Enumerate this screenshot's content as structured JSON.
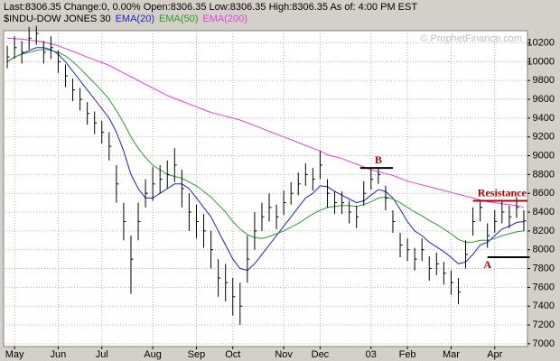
{
  "chart_data": {
    "type": "ohlc",
    "header": "Last:8306.35 Change:0, 0.00% Open:8306.35 Low:8306.35 High:8306.35 As of: 4:00 PM EST",
    "watermark": "© ProphetFinance.com",
    "categories": [
      null,
      "May",
      null,
      null,
      null,
      null,
      null,
      "Jun",
      null,
      null,
      null,
      null,
      null,
      "Jul",
      null,
      null,
      null,
      null,
      null,
      null,
      "Aug",
      null,
      null,
      null,
      null,
      null,
      "Sep",
      null,
      null,
      null,
      null,
      "Oct",
      null,
      null,
      null,
      null,
      null,
      null,
      "Nov",
      null,
      null,
      null,
      null,
      "Dec",
      null,
      null,
      null,
      null,
      null,
      null,
      "03",
      null,
      null,
      null,
      null,
      "Feb",
      null,
      null,
      null,
      null,
      null,
      "Mar",
      null,
      null,
      null,
      null,
      null,
      "Apr",
      null,
      null,
      null,
      null
    ],
    "price": {
      "name": "$INDU-DOW JONES 30",
      "color": "#000000",
      "high": [
        10170,
        10270,
        10220,
        10370,
        10380,
        10220,
        10270,
        10120,
        9970,
        9820,
        9720,
        9570,
        9470,
        9370,
        9250,
        8900,
        8500,
        8150,
        8500,
        8750,
        8880,
        8900,
        8950,
        9080,
        8850,
        8600,
        8480,
        8380,
        8200,
        7900,
        7850,
        7700,
        7650,
        8150,
        8400,
        8500,
        8600,
        8480,
        8630,
        8720,
        8820,
        8920,
        8870,
        9050,
        8750,
        8620,
        8620,
        8520,
        8470,
        8730,
        8860,
        8880,
        8680,
        8420,
        8180,
        8120,
        8020,
        8120,
        7930,
        7970,
        7870,
        7780,
        7700,
        8100,
        8450,
        8530,
        8280,
        8420,
        8520,
        8470,
        8560,
        8420
      ],
      "low": [
        9930,
        10030,
        9980,
        10130,
        10180,
        9980,
        10030,
        9880,
        9730,
        9580,
        9480,
        9330,
        9230,
        9130,
        8950,
        8500,
        8100,
        7530,
        8100,
        8450,
        8520,
        8600,
        8650,
        8720,
        8450,
        8200,
        8120,
        8020,
        7800,
        7500,
        7450,
        7300,
        7200,
        7650,
        8000,
        8200,
        8300,
        8220,
        8370,
        8480,
        8580,
        8680,
        8630,
        8750,
        8450,
        8380,
        8380,
        8280,
        8230,
        8470,
        8640,
        8700,
        8420,
        8180,
        7920,
        7880,
        7780,
        7880,
        7670,
        7730,
        7630,
        7520,
        7420,
        7800,
        8150,
        8300,
        8020,
        8180,
        8280,
        8230,
        8340,
        8200
      ],
      "close": [
        10050,
        10150,
        10100,
        10250,
        10300,
        10100,
        10150,
        10000,
        9850,
        9700,
        9600,
        9450,
        9350,
        9250,
        9100,
        8700,
        8300,
        7900,
        8300,
        8600,
        8700,
        8750,
        8800,
        8900,
        8650,
        8400,
        8300,
        8200,
        8000,
        7700,
        7650,
        7500,
        7400,
        7900,
        8200,
        8350,
        8450,
        8350,
        8500,
        8600,
        8700,
        8800,
        8750,
        8900,
        8600,
        8500,
        8500,
        8400,
        8350,
        8600,
        8750,
        8800,
        8550,
        8300,
        8050,
        8000,
        7900,
        8000,
        7800,
        7850,
        7750,
        7650,
        7550,
        7950,
        8300,
        8450,
        8150,
        8300,
        8400,
        8350,
        8450,
        8306.35
      ]
    },
    "series": [
      {
        "name": "EMA(20)",
        "color": "#2020c0",
        "values": [
          10000,
          10050,
          10080,
          10120,
          10150,
          10150,
          10130,
          10080,
          10000,
          9900,
          9800,
          9700,
          9600,
          9500,
          9400,
          9250,
          9050,
          8800,
          8650,
          8550,
          8550,
          8600,
          8650,
          8700,
          8700,
          8650,
          8550,
          8450,
          8350,
          8200,
          8050,
          7900,
          7800,
          7780,
          7850,
          7950,
          8050,
          8150,
          8250,
          8350,
          8450,
          8550,
          8600,
          8680,
          8670,
          8620,
          8580,
          8540,
          8500,
          8520,
          8580,
          8640,
          8620,
          8550,
          8430,
          8300,
          8200,
          8150,
          8080,
          8030,
          7980,
          7920,
          7850,
          7870,
          7950,
          8050,
          8080,
          8150,
          8220,
          8250,
          8290,
          8300
        ]
      },
      {
        "name": "EMA(50)",
        "color": "#2e9a2e",
        "values": [
          10000,
          10050,
          10080,
          10100,
          10120,
          10130,
          10120,
          10100,
          10060,
          10000,
          9930,
          9850,
          9770,
          9690,
          9600,
          9480,
          9350,
          9200,
          9080,
          8980,
          8900,
          8850,
          8800,
          8780,
          8760,
          8720,
          8680,
          8620,
          8560,
          8480,
          8400,
          8300,
          8220,
          8160,
          8130,
          8120,
          8140,
          8170,
          8200,
          8240,
          8280,
          8330,
          8380,
          8420,
          8450,
          8460,
          8470,
          8470,
          8460,
          8480,
          8510,
          8550,
          8560,
          8540,
          8500,
          8450,
          8400,
          8360,
          8310,
          8270,
          8220,
          8170,
          8110,
          8080,
          8080,
          8100,
          8100,
          8120,
          8150,
          8170,
          8190,
          8200
        ]
      },
      {
        "name": "EMA(200)",
        "color": "#e040e0",
        "values": [
          10250,
          10245,
          10240,
          10230,
          10220,
          10210,
          10190,
          10170,
          10140,
          10110,
          10080,
          10050,
          10020,
          9990,
          9960,
          9920,
          9880,
          9840,
          9800,
          9760,
          9720,
          9680,
          9640,
          9610,
          9580,
          9550,
          9520,
          9490,
          9460,
          9440,
          9420,
          9400,
          9380,
          9350,
          9320,
          9290,
          9260,
          9230,
          9200,
          9170,
          9140,
          9110,
          9080,
          9050,
          9010,
          8990,
          8970,
          8940,
          8910,
          8880,
          8850,
          8830,
          8810,
          8790,
          8760,
          8730,
          8710,
          8690,
          8670,
          8650,
          8630,
          8610,
          8590,
          8570,
          8550,
          8530,
          8510,
          8500,
          8490,
          8480,
          8470,
          8450
        ]
      }
    ],
    "annotations": [
      {
        "text": "B",
        "value": 8870
      },
      {
        "text": "Resistance",
        "value": 8520
      },
      {
        "text": "A",
        "value": 7920
      }
    ],
    "ylim": [
      6970,
      10330
    ],
    "yticks": [
      7000,
      7200,
      7400,
      7600,
      7800,
      8000,
      8200,
      8400,
      8600,
      8800,
      9000,
      9200,
      9400,
      9600,
      9800,
      10000,
      10200
    ],
    "grid": true
  }
}
